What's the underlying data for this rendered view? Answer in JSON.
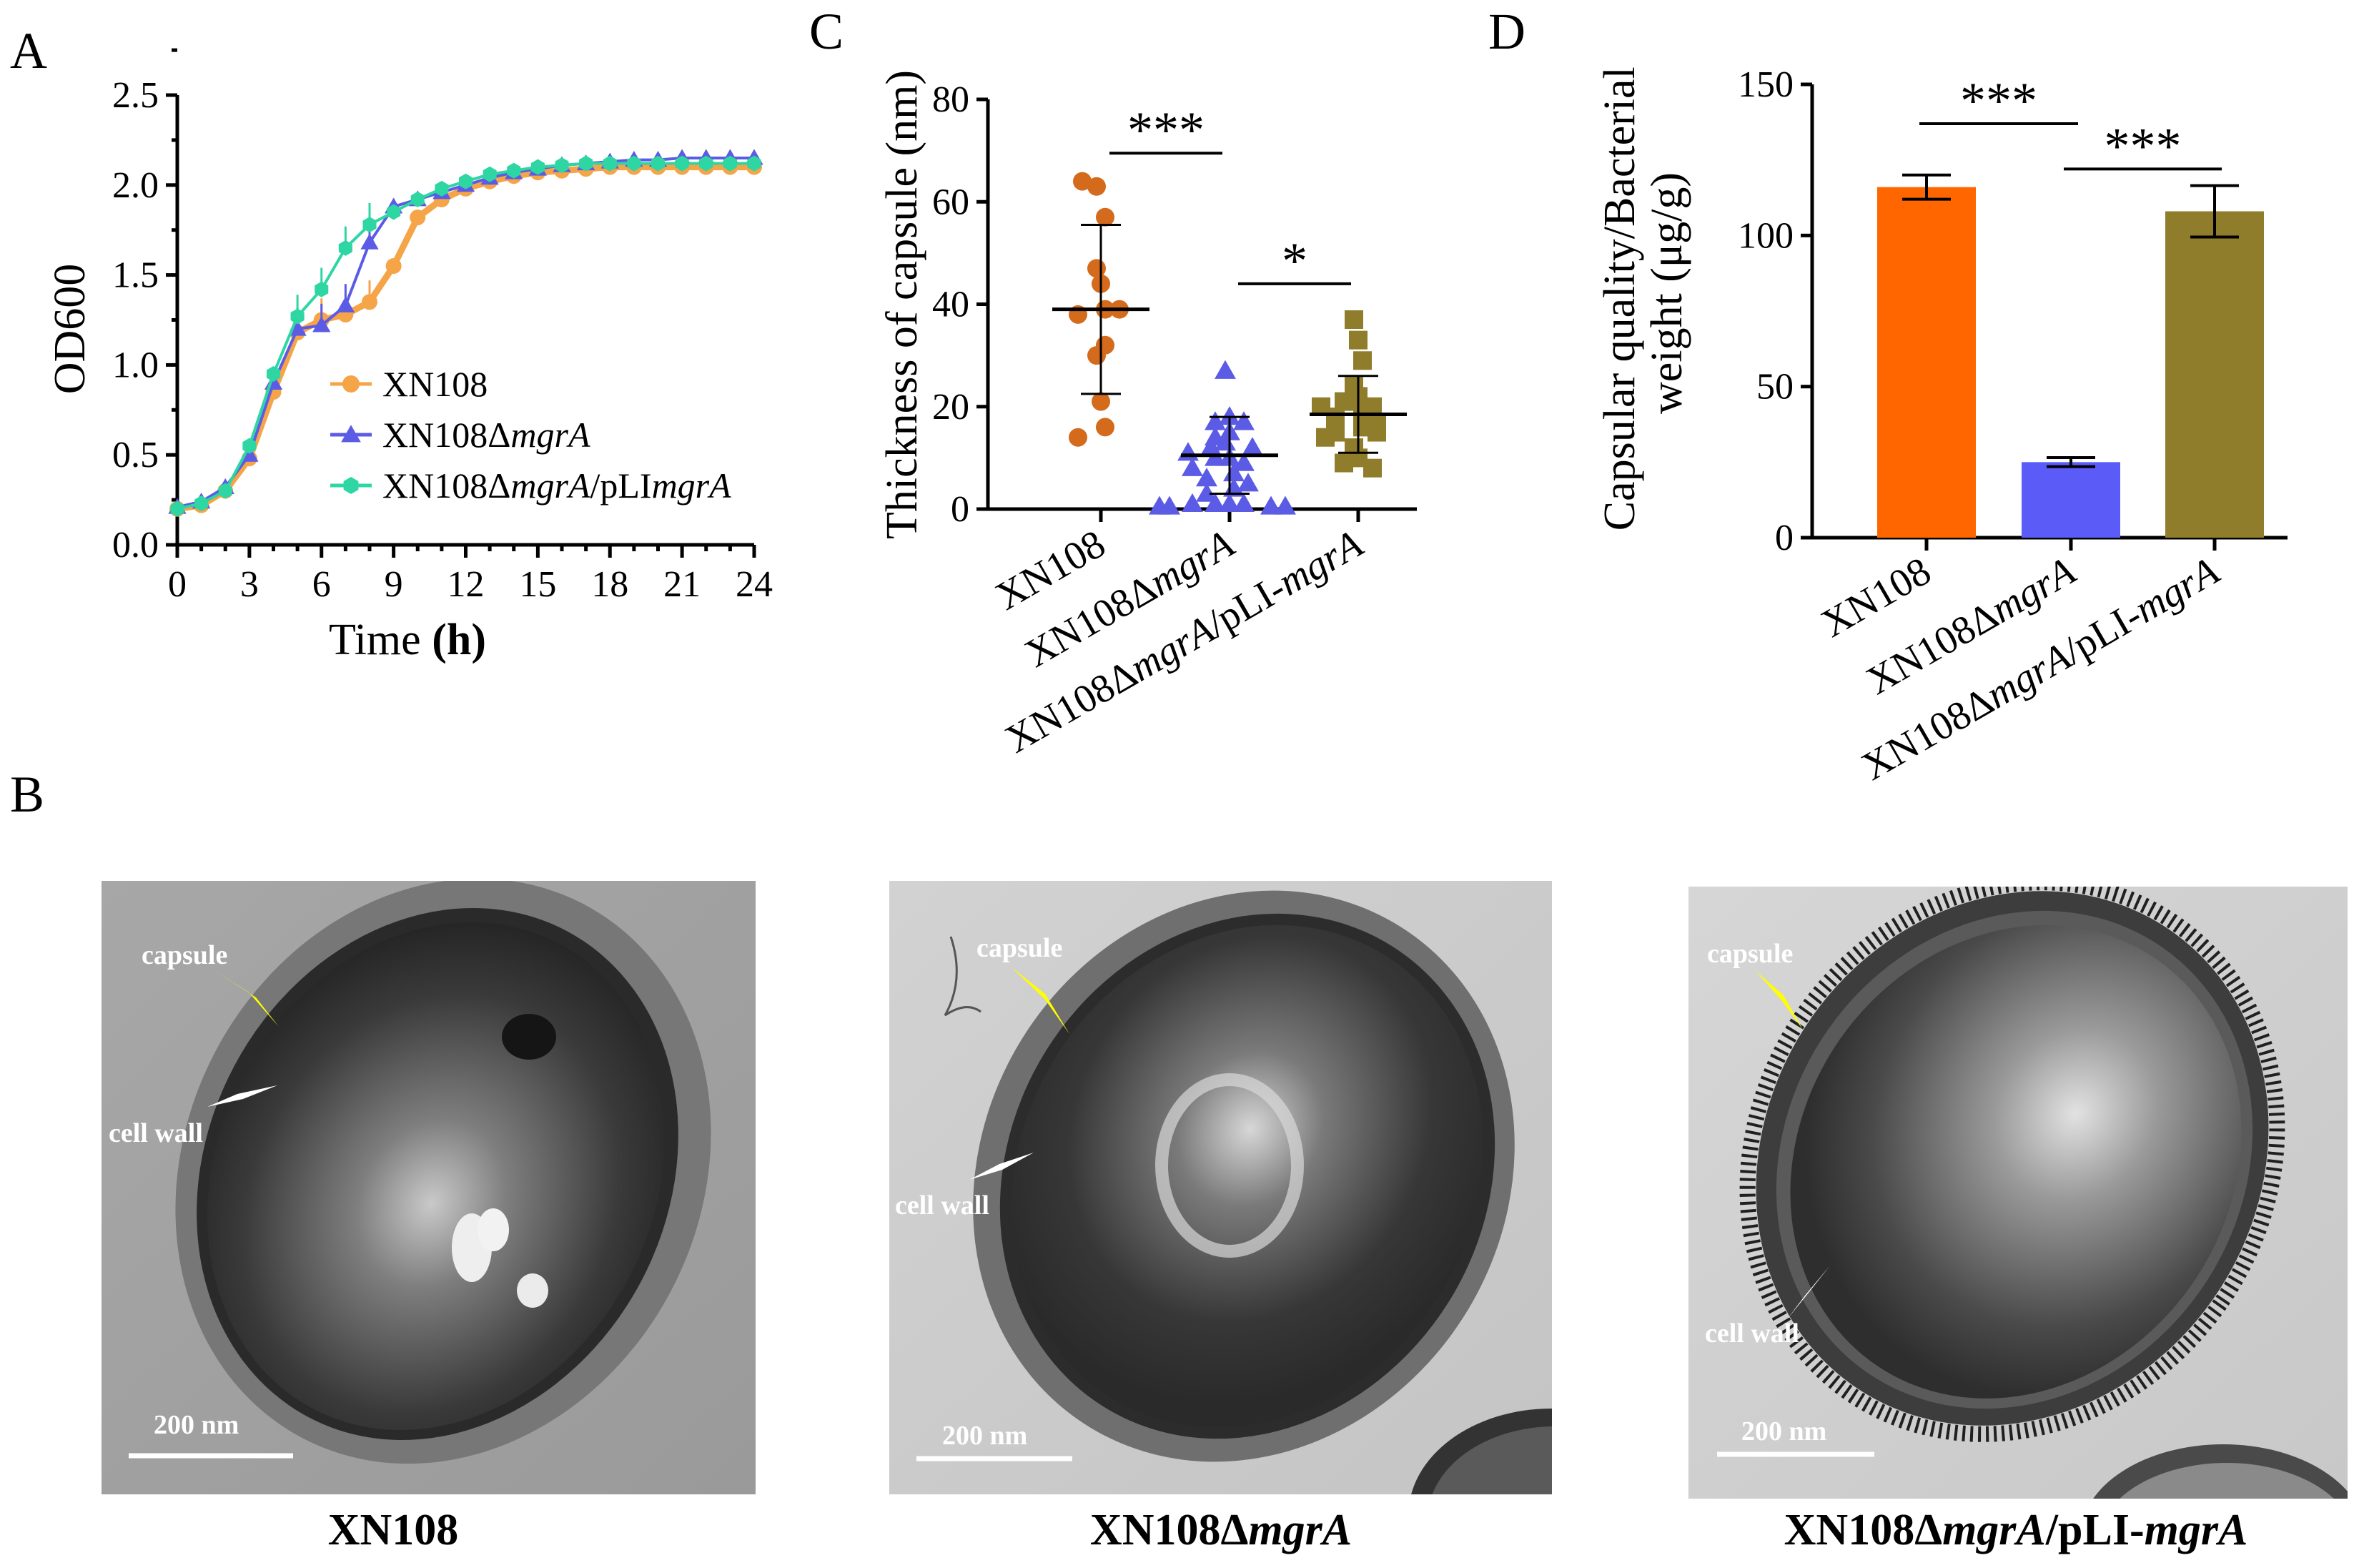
{
  "panels": {
    "A": "A",
    "B": "B",
    "C": "C",
    "D": "D"
  },
  "chart_data": [
    {
      "panel": "A",
      "type": "line",
      "xlabel": "Time",
      "xlabel_unit": "(h)",
      "ylabel": "OD600",
      "xlim": [
        0,
        24
      ],
      "ylim": [
        0,
        2.5
      ],
      "x_ticks": [
        "0",
        "3",
        "6",
        "9",
        "12",
        "15",
        "18",
        "21",
        "24"
      ],
      "y_ticks": [
        "0.0",
        "0.5",
        "1.0",
        "1.5",
        "2.0",
        "2.5"
      ],
      "x": [
        0,
        1,
        2,
        3,
        4,
        5,
        6,
        7,
        8,
        9,
        10,
        11,
        12,
        13,
        14,
        15,
        16,
        17,
        18,
        19,
        20,
        21,
        22,
        23,
        24
      ],
      "legend_position": "center",
      "series": [
        {
          "name": "XN108",
          "name_parts": [
            {
              "t": "XN108",
              "i": false
            }
          ],
          "color": "#F5A447",
          "marker": "circle",
          "values": [
            0.2,
            0.22,
            0.3,
            0.48,
            0.85,
            1.18,
            1.25,
            1.28,
            1.35,
            1.55,
            1.82,
            1.92,
            1.98,
            2.02,
            2.05,
            2.07,
            2.08,
            2.09,
            2.1,
            2.1,
            2.1,
            2.1,
            2.1,
            2.1,
            2.1
          ]
        },
        {
          "name": "XN108ΔmgrA",
          "name_parts": [
            {
              "t": "XN108Δ",
              "i": false
            },
            {
              "t": "mgrA",
              "i": true
            }
          ],
          "color": "#5B5BE6",
          "marker": "triangle",
          "values": [
            0.21,
            0.24,
            0.32,
            0.5,
            0.9,
            1.2,
            1.22,
            1.33,
            1.68,
            1.88,
            1.92,
            1.96,
            2.0,
            2.04,
            2.07,
            2.09,
            2.11,
            2.12,
            2.13,
            2.14,
            2.14,
            2.15,
            2.15,
            2.15,
            2.15
          ]
        },
        {
          "name": "XN108ΔmgrA/pLImgrA",
          "name_parts": [
            {
              "t": "XN108Δ",
              "i": false
            },
            {
              "t": "mgrA",
              "i": true
            },
            {
              "t": "/pLI",
              "i": false
            },
            {
              "t": "mgrA",
              "i": true
            }
          ],
          "color": "#2ED6A3",
          "marker": "hexagon",
          "values": [
            0.2,
            0.23,
            0.3,
            0.55,
            0.95,
            1.27,
            1.42,
            1.65,
            1.78,
            1.85,
            1.92,
            1.98,
            2.02,
            2.06,
            2.08,
            2.1,
            2.11,
            2.12,
            2.12,
            2.12,
            2.12,
            2.12,
            2.12,
            2.12,
            2.12
          ]
        }
      ]
    },
    {
      "panel": "C",
      "type": "scatter",
      "ylabel": "Thickness of capsule (nm)",
      "ylim": [
        0,
        80
      ],
      "y_ticks": [
        "0",
        "20",
        "40",
        "60",
        "80"
      ],
      "categories": [
        "XN108",
        "XN108ΔmgrA",
        "XN108ΔmgrA/pLI-mgrA"
      ],
      "category_parts": [
        [
          {
            "t": "XN108",
            "i": false
          }
        ],
        [
          {
            "t": "XN108Δ",
            "i": false
          },
          {
            "t": "mgrA",
            "i": true
          }
        ],
        [
          {
            "t": "XN108Δ",
            "i": false
          },
          {
            "t": "mgrA",
            "i": true
          },
          {
            "t": "/pLI-",
            "i": false
          },
          {
            "t": "mgrA",
            "i": true
          }
        ]
      ],
      "groups": [
        {
          "color": "#D46A1C",
          "marker": "circle",
          "mean": 39,
          "sd": 16.5,
          "values": [
            63,
            64,
            57,
            47,
            44,
            39,
            38,
            39,
            32,
            30,
            21,
            16,
            14
          ]
        },
        {
          "color": "#5B5BE6",
          "marker": "triangle",
          "mean": 10.5,
          "sd": 7.5,
          "values": [
            27,
            18,
            17,
            17,
            15,
            14,
            13,
            12,
            12,
            11,
            10,
            10,
            9,
            8,
            7,
            6,
            5,
            4,
            3,
            1,
            1,
            1,
            1,
            0.5,
            0.5,
            0.5,
            0.5
          ]
        },
        {
          "color": "#8F7D2C",
          "marker": "square",
          "mean": 18.5,
          "sd": 7.5,
          "values": [
            37,
            33,
            29,
            24,
            22,
            21,
            20,
            20,
            19,
            18,
            17,
            16,
            15,
            15,
            14,
            12,
            10,
            9,
            8
          ]
        }
      ],
      "significance": [
        {
          "from": 0,
          "to": 1,
          "label": "***"
        },
        {
          "from": 1,
          "to": 2,
          "label": "*"
        }
      ]
    },
    {
      "panel": "D",
      "type": "bar",
      "ylabel_lines": [
        "Capsular quality/Bacterial",
        "weight (μg/g)"
      ],
      "ylim": [
        0,
        150
      ],
      "y_ticks": [
        "0",
        "50",
        "100",
        "150"
      ],
      "categories": [
        "XN108",
        "XN108ΔmgrA",
        "XN108ΔmgrA/pLI-mgrA"
      ],
      "category_parts": [
        [
          {
            "t": "XN108",
            "i": false
          }
        ],
        [
          {
            "t": "XN108Δ",
            "i": false
          },
          {
            "t": "mgrA",
            "i": true
          }
        ],
        [
          {
            "t": "XN108Δ",
            "i": false
          },
          {
            "t": "mgrA",
            "i": true
          },
          {
            "t": "/pLI-",
            "i": false
          },
          {
            "t": "mgrA",
            "i": true
          }
        ]
      ],
      "values": [
        116,
        25,
        108
      ],
      "errors": [
        4,
        1.5,
        8.5
      ],
      "colors": [
        "#FF6600",
        "#5B5BF7",
        "#8F7D2C"
      ],
      "significance": [
        {
          "from": 0,
          "to": 1,
          "label": "***"
        },
        {
          "from": 1,
          "to": 2,
          "label": "***"
        }
      ]
    }
  ],
  "micrographs": [
    {
      "caption_parts": [
        {
          "t": "XN108",
          "i": false
        }
      ],
      "capsule_label": "capsule",
      "cell_wall_label": "cell wall",
      "scale_bar": "200 nm"
    },
    {
      "caption_parts": [
        {
          "t": "XN108Δ",
          "i": false
        },
        {
          "t": "mgrA",
          "i": true
        }
      ],
      "capsule_label": "capsule",
      "cell_wall_label": "cell wall",
      "scale_bar": "200 nm"
    },
    {
      "caption_parts": [
        {
          "t": "XN108Δ",
          "i": false
        },
        {
          "t": "mgrA",
          "i": true
        },
        {
          "t": "/pLI-",
          "i": false
        },
        {
          "t": "mgrA",
          "i": true
        }
      ],
      "capsule_label": "capsule",
      "cell_wall_label": "cell wall",
      "scale_bar": "200 nm"
    }
  ]
}
